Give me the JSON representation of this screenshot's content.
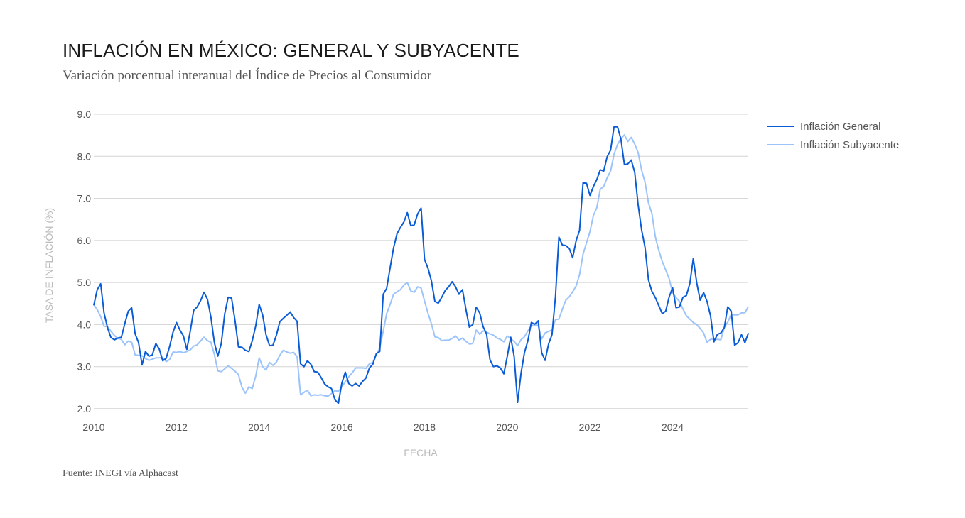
{
  "header": {
    "title": "INFLACIÓN EN MÉXICO: GENERAL Y SUBYACENTE",
    "subtitle": "Variación porcentual interanual del Índice de Precios al Consumidor"
  },
  "footer": {
    "source": "Fuente: INEGI vía Alphacast"
  },
  "chart_data": {
    "type": "line",
    "title": "INFLACIÓN EN MÉXICO: GENERAL Y SUBYACENTE",
    "xlabel": "FECHA",
    "ylabel": "TASA DE INFLACIÓN (%)",
    "x_start": "2010-01",
    "frequency": "monthly",
    "xlim": [
      2010,
      2025.83
    ],
    "ylim": [
      2.0,
      9.0
    ],
    "x_ticks": [
      "2010",
      "2012",
      "2014",
      "2016",
      "2018",
      "2020",
      "2022",
      "2024"
    ],
    "y_ticks": [
      "2.0",
      "3.0",
      "4.0",
      "5.0",
      "6.0",
      "7.0",
      "8.0",
      "9.0"
    ],
    "grid": true,
    "legend_position": "top-right",
    "colors": {
      "general": "#0a5bd6",
      "subyacente": "#9cc4fb"
    },
    "series": [
      {
        "name": "Inflación General",
        "values": [
          4.46,
          4.83,
          4.97,
          4.27,
          3.92,
          3.69,
          3.64,
          3.68,
          3.7,
          4.02,
          4.32,
          4.4,
          3.78,
          3.57,
          3.04,
          3.36,
          3.25,
          3.28,
          3.55,
          3.42,
          3.14,
          3.2,
          3.48,
          3.82,
          4.05,
          3.87,
          3.73,
          3.41,
          3.85,
          4.34,
          4.42,
          4.57,
          4.77,
          4.6,
          4.18,
          3.57,
          3.25,
          3.55,
          4.25,
          4.65,
          4.63,
          4.09,
          3.47,
          3.46,
          3.39,
          3.36,
          3.62,
          3.97,
          4.48,
          4.23,
          3.76,
          3.5,
          3.51,
          3.75,
          4.07,
          4.15,
          4.22,
          4.3,
          4.17,
          4.08,
          3.07,
          3.0,
          3.14,
          3.06,
          2.88,
          2.87,
          2.74,
          2.59,
          2.52,
          2.48,
          2.21,
          2.13,
          2.61,
          2.87,
          2.6,
          2.54,
          2.6,
          2.54,
          2.65,
          2.73,
          2.97,
          3.06,
          3.31,
          3.36,
          4.72,
          4.86,
          5.35,
          5.82,
          6.16,
          6.31,
          6.44,
          6.66,
          6.35,
          6.37,
          6.63,
          6.77,
          5.55,
          5.34,
          5.04,
          4.55,
          4.51,
          4.65,
          4.81,
          4.9,
          5.02,
          4.9,
          4.72,
          4.83,
          4.37,
          3.94,
          4.0,
          4.41,
          4.28,
          3.95,
          3.78,
          3.16,
          3.0,
          3.02,
          2.97,
          2.83,
          3.24,
          3.7,
          3.25,
          2.15,
          2.84,
          3.33,
          3.62,
          4.05,
          4.01,
          4.09,
          3.33,
          3.15,
          3.54,
          3.76,
          4.67,
          6.08,
          5.89,
          5.88,
          5.81,
          5.59,
          6.0,
          6.24,
          7.37,
          7.36,
          7.07,
          7.28,
          7.45,
          7.68,
          7.65,
          7.99,
          8.15,
          8.7,
          8.7,
          8.41,
          7.8,
          7.82,
          7.91,
          7.62,
          6.85,
          6.25,
          5.84,
          5.06,
          4.79,
          4.64,
          4.45,
          4.26,
          4.32,
          4.66,
          4.88,
          4.4,
          4.42,
          4.65,
          4.69,
          4.98,
          5.57,
          4.99,
          4.58,
          4.76,
          4.55,
          4.21,
          3.59,
          3.77,
          3.8,
          3.93,
          4.42,
          4.32,
          3.51,
          3.57,
          3.76,
          3.57,
          3.8
        ]
      },
      {
        "name": "Inflación Subyacente",
        "values": [
          4.47,
          4.36,
          4.19,
          3.96,
          3.95,
          3.84,
          3.74,
          3.67,
          3.65,
          3.52,
          3.61,
          3.58,
          3.28,
          3.27,
          3.26,
          3.19,
          3.15,
          3.18,
          3.21,
          3.21,
          3.22,
          3.12,
          3.17,
          3.35,
          3.34,
          3.36,
          3.33,
          3.36,
          3.4,
          3.49,
          3.52,
          3.61,
          3.7,
          3.62,
          3.58,
          3.29,
          2.9,
          2.88,
          2.95,
          3.02,
          2.96,
          2.89,
          2.81,
          2.51,
          2.37,
          2.52,
          2.48,
          2.78,
          3.21,
          3.0,
          2.92,
          3.1,
          3.03,
          3.11,
          3.27,
          3.39,
          3.35,
          3.32,
          3.34,
          3.24,
          2.33,
          2.39,
          2.44,
          2.31,
          2.33,
          2.32,
          2.33,
          2.31,
          2.3,
          2.36,
          2.43,
          2.41,
          2.52,
          2.64,
          2.76,
          2.85,
          2.97,
          2.97,
          2.97,
          2.96,
          3.07,
          3.1,
          3.29,
          3.44,
          3.84,
          4.26,
          4.48,
          4.72,
          4.78,
          4.83,
          4.94,
          5.0,
          4.8,
          4.77,
          4.9,
          4.87,
          4.56,
          4.27,
          4.02,
          3.71,
          3.69,
          3.62,
          3.63,
          3.63,
          3.67,
          3.73,
          3.63,
          3.68,
          3.6,
          3.54,
          3.55,
          3.87,
          3.77,
          3.85,
          3.82,
          3.78,
          3.75,
          3.68,
          3.65,
          3.59,
          3.73,
          3.66,
          3.6,
          3.5,
          3.64,
          3.71,
          3.85,
          3.97,
          3.99,
          3.98,
          3.66,
          3.8,
          3.84,
          3.87,
          4.12,
          4.13,
          4.37,
          4.58,
          4.66,
          4.78,
          4.92,
          5.19,
          5.67,
          5.94,
          6.21,
          6.59,
          6.78,
          7.22,
          7.28,
          7.49,
          7.65,
          8.05,
          8.28,
          8.42,
          8.51,
          8.35,
          8.45,
          8.29,
          8.09,
          7.67,
          7.39,
          6.89,
          6.64,
          6.08,
          5.76,
          5.5,
          5.3,
          5.09,
          4.76,
          4.64,
          4.55,
          4.37,
          4.21,
          4.13,
          4.05,
          4.0,
          3.91,
          3.8,
          3.58,
          3.65,
          3.66,
          3.65,
          3.64,
          3.93,
          4.06,
          4.24,
          4.23,
          4.23,
          4.28,
          4.28,
          4.43
        ]
      }
    ]
  }
}
